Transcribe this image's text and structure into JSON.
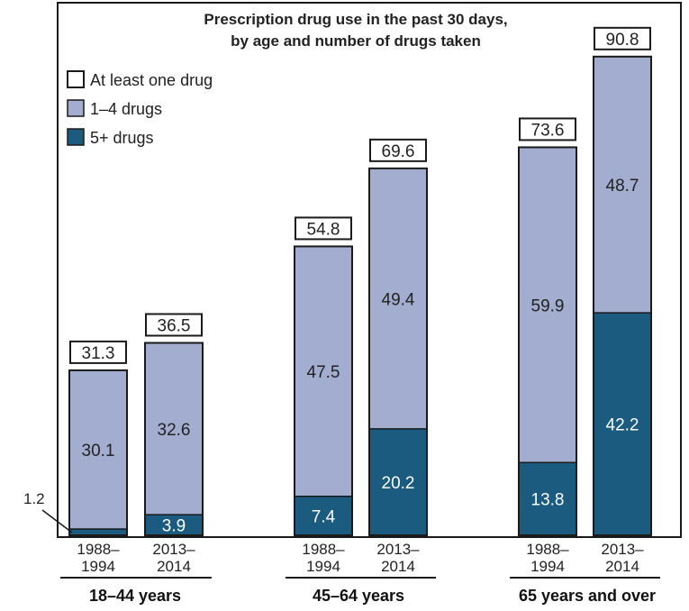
{
  "chart_data": {
    "type": "bar",
    "stacked": true,
    "title_lines": [
      "Prescription drug use in the past 30 days,",
      "by age and number of drugs taken"
    ],
    "legend": [
      {
        "label": "At least one drug",
        "color": "#ffffff"
      },
      {
        "label": "1–4 drugs",
        "color": "#a2adcf"
      },
      {
        "label": "5+ drugs",
        "color": "#1b5b80"
      }
    ],
    "groups": [
      {
        "label": "18–44 years",
        "bars": [
          {
            "period": [
              "1988–",
              "1994"
            ],
            "five_plus": 1.2,
            "one_to_four": 30.1,
            "total": 31.3,
            "five_plus_label": "1.2",
            "one_to_four_label": "30.1",
            "total_label": "31.3"
          },
          {
            "period": [
              "2013–",
              "2014"
            ],
            "five_plus": 3.9,
            "one_to_four": 32.6,
            "total": 36.5,
            "five_plus_label": "3.9",
            "one_to_four_label": "32.6",
            "total_label": "36.5"
          }
        ]
      },
      {
        "label": "45–64 years",
        "bars": [
          {
            "period": [
              "1988–",
              "1994"
            ],
            "five_plus": 7.4,
            "one_to_four": 47.5,
            "total": 54.8,
            "five_plus_label": "7.4",
            "one_to_four_label": "47.5",
            "total_label": "54.8"
          },
          {
            "period": [
              "2013–",
              "2014"
            ],
            "five_plus": 20.2,
            "one_to_four": 49.4,
            "total": 69.6,
            "five_plus_label": "20.2",
            "one_to_four_label": "49.4",
            "total_label": "69.6"
          }
        ]
      },
      {
        "label": "65 years and over",
        "bars": [
          {
            "period": [
              "1988–",
              "1994"
            ],
            "five_plus": 13.8,
            "one_to_four": 59.9,
            "total": 73.6,
            "five_plus_label": "13.8",
            "one_to_four_label": "59.9",
            "total_label": "73.6"
          },
          {
            "period": [
              "2013–",
              "2014"
            ],
            "five_plus": 42.2,
            "one_to_four": 48.7,
            "total": 90.8,
            "five_plus_label": "42.2",
            "one_to_four_label": "48.7",
            "total_label": "90.8"
          }
        ]
      }
    ],
    "ylim": [
      0,
      100
    ],
    "grid": false,
    "legend_position": "top-left",
    "colors": {
      "five_plus": "#1b5b80",
      "one_to_four": "#a2adcf",
      "outline": "#1a1a1a"
    }
  }
}
